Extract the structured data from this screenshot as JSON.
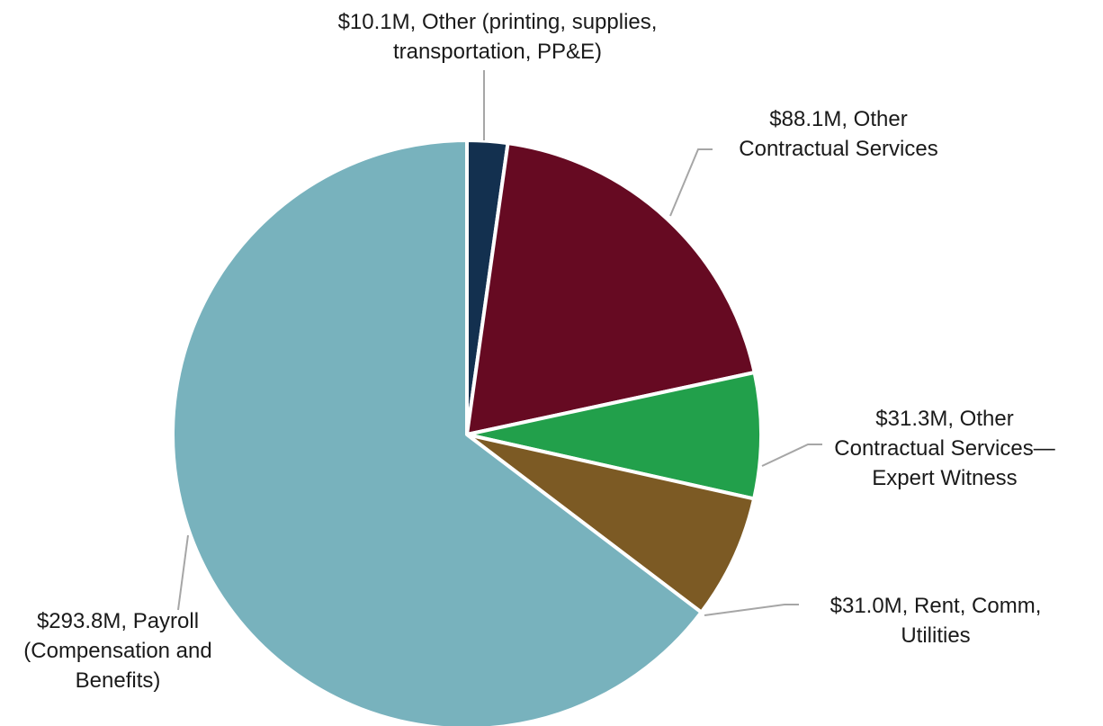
{
  "chart_data": {
    "type": "pie",
    "title": "",
    "slices": [
      {
        "name": "Other (printing, supplies, transportation, PP&E)",
        "value": 10.1,
        "label_lines": [
          "$10.1M, Other (printing, supplies,",
          "transportation, PP&E)"
        ],
        "color": "#13304f"
      },
      {
        "name": "Other Contractual Services",
        "value": 88.1,
        "label_lines": [
          "$88.1M, Other",
          "Contractual Services"
        ],
        "color": "#660a22"
      },
      {
        "name": "Other Contractual Services—Expert Witness",
        "value": 31.3,
        "label_lines": [
          "$31.3M, Other",
          "Contractual Services—",
          "Expert Witness"
        ],
        "color": "#22a04b"
      },
      {
        "name": "Rent, Comm, Utilities",
        "value": 31.0,
        "label_lines": [
          "$31.0M, Rent, Comm,",
          "Utilities"
        ],
        "color": "#7c5a24"
      },
      {
        "name": "Payroll (Compensation and Benefits)",
        "value": 293.8,
        "label_lines": [
          "$293.8M, Payroll",
          "(Compensation and",
          "Benefits)"
        ],
        "color": "#78b2bd"
      }
    ],
    "start_angle": "12 o'clock",
    "direction": "clockwise",
    "legend": "none"
  }
}
